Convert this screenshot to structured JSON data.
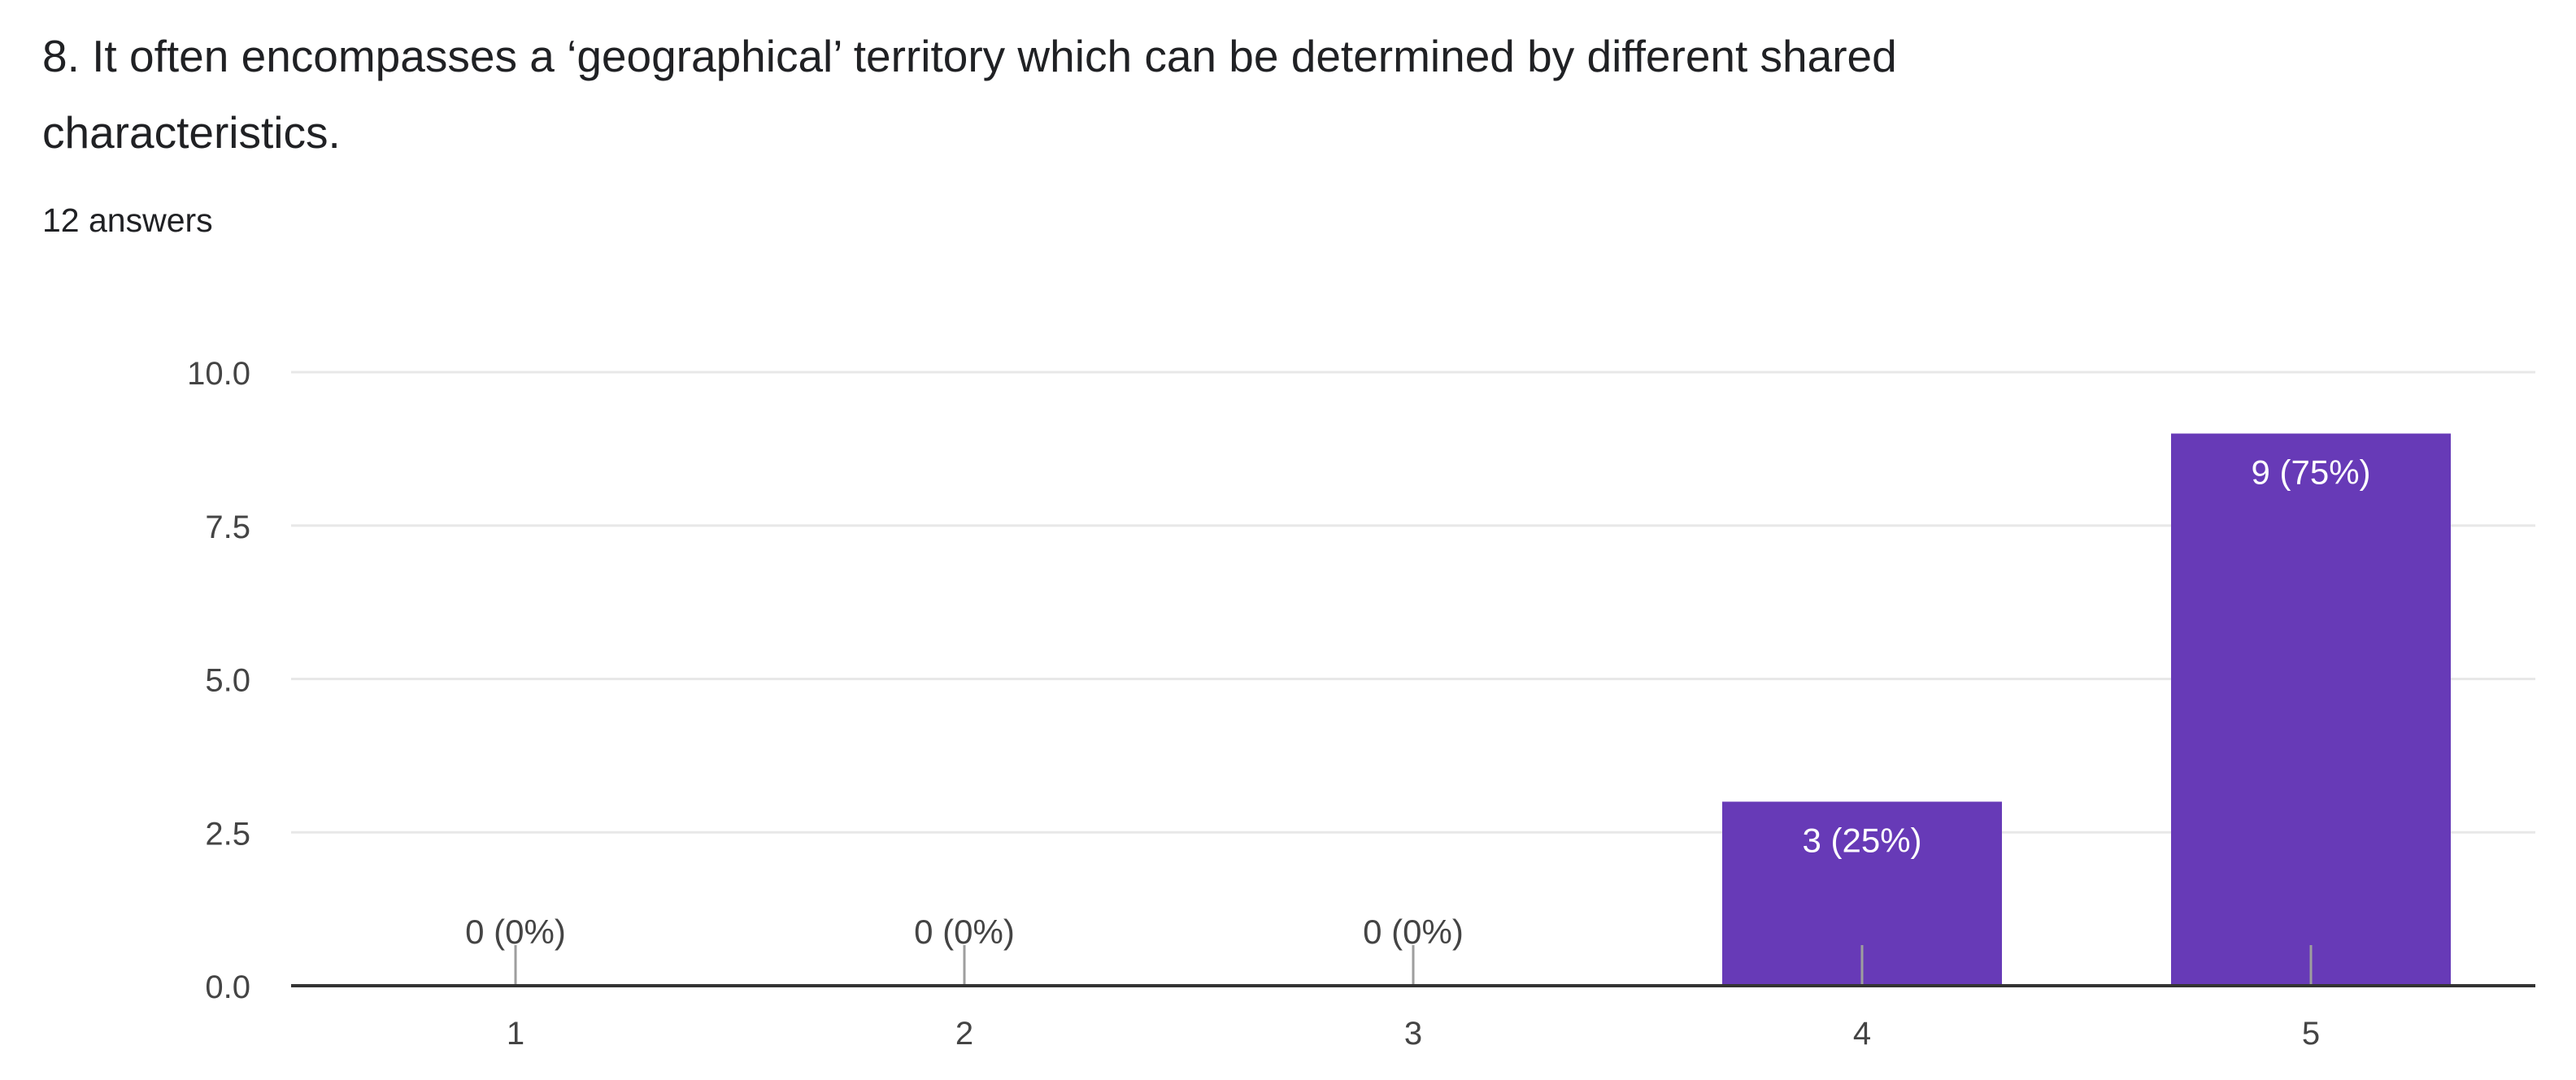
{
  "question": {
    "title": "8. It often encompasses a ‘geographical’ territory which can be determined by different shared characteristics.",
    "answer_count": "12 answers"
  },
  "colors": {
    "bar": "#673ab7",
    "gridline": "#e8e8e8",
    "axis": "#333333",
    "tick_text": "#444444",
    "label_inside": "#ffffff",
    "label_outside": "#444444"
  },
  "chart_data": {
    "type": "bar",
    "categories": [
      "1",
      "2",
      "3",
      "4",
      "5"
    ],
    "values": [
      0,
      0,
      0,
      3,
      9
    ],
    "data_labels": [
      "0 (0%)",
      "0 (0%)",
      "0 (0%)",
      "3 (25%)",
      "9 (75%)"
    ],
    "y_ticks": [
      "0.0",
      "2.5",
      "5.0",
      "7.5",
      "10.0"
    ],
    "ylim": [
      0,
      10
    ],
    "grid": true,
    "legend": "none"
  }
}
